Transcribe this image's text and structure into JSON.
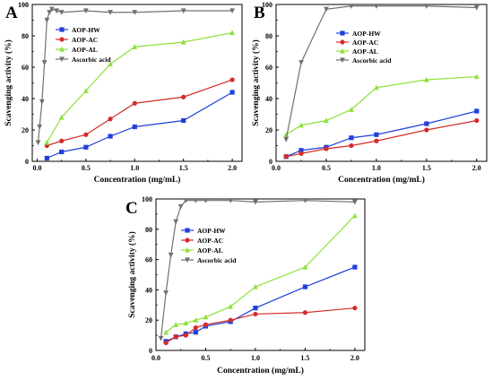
{
  "chart_data": [
    {
      "type": "line",
      "panel_letter": "A",
      "xlabel": "Concentration (mg/mL)",
      "ylabel": "Scavenging activity (%)",
      "xlim": [
        -0.05,
        2.1
      ],
      "ylim": [
        0,
        100
      ],
      "xticks": [
        0.0,
        0.5,
        1.0,
        1.5,
        2.0
      ],
      "xtick_labels": [
        "0.0",
        "0.5",
        "1.0",
        "1.5",
        "2.0"
      ],
      "yticks": [
        0,
        20,
        40,
        60,
        80,
        100
      ],
      "ytick_labels": [
        "0",
        "20",
        "40",
        "60",
        "80",
        "100"
      ],
      "legend_position": "top-left",
      "series": [
        {
          "name": "AOP-HW",
          "color": "#1f3fdc",
          "marker": "square",
          "x": [
            0.1,
            0.25,
            0.5,
            0.75,
            1.0,
            1.5,
            2.0
          ],
          "y": [
            2,
            6,
            9,
            16,
            22,
            26,
            44
          ]
        },
        {
          "name": "AOP-AC",
          "color": "#d42b2b",
          "marker": "circle",
          "x": [
            0.1,
            0.25,
            0.5,
            0.75,
            1.0,
            1.5,
            2.0
          ],
          "y": [
            10,
            13,
            17,
            27,
            37,
            41,
            52
          ]
        },
        {
          "name": "AOP-AL",
          "color": "#8fe03a",
          "marker": "triangle-up",
          "x": [
            0.1,
            0.25,
            0.5,
            0.75,
            1.0,
            1.5,
            2.0
          ],
          "y": [
            12,
            28,
            45,
            62,
            73,
            76,
            82
          ]
        },
        {
          "name": "Ascorbic acid",
          "color": "#707070",
          "marker": "triangle-down",
          "x": [
            0.01,
            0.025,
            0.05,
            0.075,
            0.1,
            0.125,
            0.15,
            0.2,
            0.25,
            0.5,
            0.75,
            1.0,
            1.5,
            2.0
          ],
          "y": [
            12,
            22,
            38,
            63,
            90,
            95,
            97,
            96,
            95,
            96,
            95,
            95,
            96,
            96
          ]
        }
      ]
    },
    {
      "type": "line",
      "panel_letter": "B",
      "xlabel": "Concentration (mg/mL)",
      "ylabel": "Scavenging activity (%)",
      "xlim": [
        0.0,
        2.1
      ],
      "ylim": [
        0,
        100
      ],
      "xticks": [
        0.0,
        0.5,
        1.0,
        1.5,
        2.0
      ],
      "xtick_labels": [
        "0.0",
        "0.5",
        "1.0",
        "1.5",
        "2.0"
      ],
      "yticks": [
        0,
        20,
        40,
        60,
        80,
        100
      ],
      "ytick_labels": [
        "0",
        "20",
        "40",
        "60",
        "80",
        "100"
      ],
      "legend_position": "top-right",
      "series": [
        {
          "name": "AOP-HW",
          "color": "#1f3fdc",
          "marker": "square",
          "x": [
            0.1,
            0.25,
            0.5,
            0.75,
            1.0,
            1.5,
            2.0
          ],
          "y": [
            3,
            7,
            9,
            15,
            17,
            24,
            32
          ]
        },
        {
          "name": "AOP-AC",
          "color": "#d42b2b",
          "marker": "circle",
          "x": [
            0.1,
            0.25,
            0.5,
            0.75,
            1.0,
            1.5,
            2.0
          ],
          "y": [
            3,
            5,
            8,
            10,
            13,
            20,
            26
          ]
        },
        {
          "name": "AOP-AL",
          "color": "#8fe03a",
          "marker": "triangle-up",
          "x": [
            0.1,
            0.25,
            0.5,
            0.75,
            1.0,
            1.5,
            2.0
          ],
          "y": [
            17,
            23,
            26,
            33,
            47,
            52,
            54
          ]
        },
        {
          "name": "Ascorbic acid",
          "color": "#707070",
          "marker": "triangle-down",
          "x": [
            0.1,
            0.25,
            0.5,
            0.75,
            1.0,
            1.5,
            2.0
          ],
          "y": [
            14,
            63,
            97,
            99,
            99,
            99,
            98
          ]
        }
      ]
    },
    {
      "type": "line",
      "panel_letter": "C",
      "xlabel": "Concentration (mg/mL)",
      "ylabel": "Scavenging activity (%)",
      "xlim": [
        0.0,
        2.1
      ],
      "ylim": [
        0,
        100
      ],
      "xticks": [
        0.0,
        0.5,
        1.0,
        1.5,
        2.0
      ],
      "xtick_labels": [
        "0.0",
        "0.5",
        "1.0",
        "1.5",
        "2.0"
      ],
      "yticks": [
        0,
        20,
        40,
        60,
        80,
        100
      ],
      "ytick_labels": [
        "0",
        "20",
        "40",
        "60",
        "80",
        "100"
      ],
      "legend_position": "top-left",
      "series": [
        {
          "name": "AOP-HW",
          "color": "#1f3fdc",
          "marker": "square",
          "x": [
            0.1,
            0.2,
            0.3,
            0.4,
            0.5,
            0.75,
            1.0,
            1.5,
            2.0
          ],
          "y": [
            6,
            9,
            11,
            12,
            16,
            19,
            28,
            42,
            55
          ]
        },
        {
          "name": "AOP-AC",
          "color": "#d42b2b",
          "marker": "circle",
          "x": [
            0.1,
            0.2,
            0.3,
            0.4,
            0.5,
            0.75,
            1.0,
            1.5,
            2.0
          ],
          "y": [
            5,
            9,
            10,
            15,
            17,
            20,
            24,
            25,
            28
          ]
        },
        {
          "name": "AOP-AL",
          "color": "#8fe03a",
          "marker": "triangle-up",
          "x": [
            0.1,
            0.2,
            0.3,
            0.4,
            0.5,
            0.75,
            1.0,
            1.5,
            2.0
          ],
          "y": [
            12,
            17,
            18,
            20,
            22,
            29,
            42,
            55,
            89
          ]
        },
        {
          "name": "Ascorbic acid",
          "color": "#707070",
          "marker": "triangle-down",
          "x": [
            0.05,
            0.1,
            0.15,
            0.2,
            0.25,
            0.3,
            0.4,
            0.5,
            0.75,
            1.0,
            1.5,
            2.0
          ],
          "y": [
            8,
            38,
            63,
            85,
            95,
            99,
            99,
            99,
            99,
            98,
            99,
            98
          ]
        }
      ]
    }
  ]
}
